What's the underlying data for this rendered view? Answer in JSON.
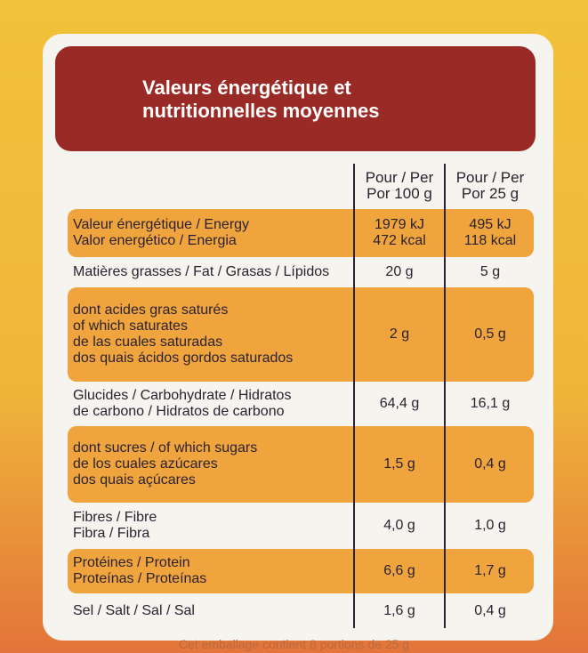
{
  "header": {
    "title": [
      "Valeurs énergétique et",
      "nutritionnelles moyennes"
    ]
  },
  "table": {
    "columns": [
      [
        "Pour / Per",
        "Por 100 g"
      ],
      [
        "Pour / Per",
        "Por 25 g"
      ]
    ],
    "rows": [
      {
        "label": [
          "Valeur énergétique / Energy",
          "Valor energético / Energia"
        ],
        "per_100g": [
          "1979 kJ",
          "472 kcal"
        ],
        "per_25g": [
          "495 kJ",
          "118 kcal"
        ]
      },
      {
        "label": [
          "Matières grasses / Fat / Grasas / Lípidos"
        ],
        "per_100g": [
          "20 g"
        ],
        "per_25g": [
          "5 g"
        ]
      },
      {
        "label": [
          "dont acides gras saturés",
          "of which saturates",
          "de las cuales saturadas",
          "dos quais ácidos gordos saturados"
        ],
        "per_100g": [
          "2 g"
        ],
        "per_25g": [
          "0,5 g"
        ]
      },
      {
        "label": [
          "Glucides / Carbohydrate / Hidratos",
          "de carbono / Hidratos de carbono"
        ],
        "per_100g": [
          "64,4 g"
        ],
        "per_25g": [
          "16,1 g"
        ]
      },
      {
        "label": [
          "dont sucres / of which sugars",
          "de los cuales azúcares",
          "dos quais açúcares"
        ],
        "per_100g": [
          "1,5 g"
        ],
        "per_25g": [
          "0,4 g"
        ]
      },
      {
        "label": [
          "Fibres / Fibre",
          "Fibra / Fibra"
        ],
        "per_100g": [
          "4,0 g"
        ],
        "per_25g": [
          "1,0 g"
        ]
      },
      {
        "label": [
          "Protéines / Protein",
          "Proteínas / Proteínas"
        ],
        "per_100g": [
          "6,6 g"
        ],
        "per_25g": [
          "1,7 g"
        ]
      },
      {
        "label": [
          "Sel / Salt / Sal / Sal"
        ],
        "per_100g": [
          "1,6 g"
        ],
        "per_25g": [
          "0,4 g"
        ]
      }
    ]
  },
  "footer": "Cet emballage contient 8 portions de 25 g"
}
